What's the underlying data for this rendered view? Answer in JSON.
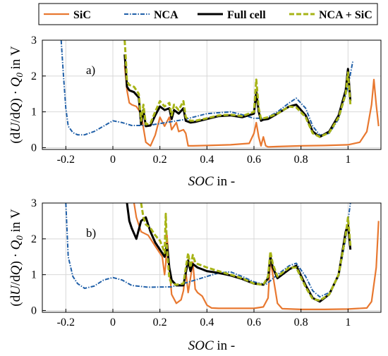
{
  "legend": {
    "items": [
      {
        "key": "sic",
        "label": "SiC",
        "color": "#E87830",
        "dash": "solid"
      },
      {
        "key": "nca",
        "label": "NCA",
        "color": "#1F5FA8",
        "dash": "dashdot"
      },
      {
        "key": "full",
        "label": "Full cell",
        "color": "#000000",
        "dash": "solid-thick"
      },
      {
        "key": "ncasic",
        "label": "NCA + SiC",
        "color": "#A7B417",
        "dash": "dashed-thick"
      }
    ]
  },
  "chart_data": [
    {
      "type": "line",
      "panel_label": "a)",
      "xlabel": "SOC in -",
      "ylabel": "(dU/dQ) · Q0 in V",
      "xlim": [
        -0.3,
        1.14
      ],
      "ylim": [
        -0.05,
        3.0
      ],
      "xticks": [
        -0.2,
        0,
        0.2,
        0.4,
        0.6,
        0.8,
        1
      ],
      "xtick_labels": [
        "-0.2",
        "0",
        "0.2",
        "0.4",
        "0.6",
        "0.8",
        "1"
      ],
      "yticks": [
        0,
        1,
        2,
        3
      ],
      "ytick_labels": [
        "0",
        "1",
        "2",
        "3"
      ],
      "grid": true,
      "series": [
        {
          "key": "sic",
          "name": "SiC",
          "x": [
            0.05,
            0.06,
            0.07,
            0.08,
            0.1,
            0.12,
            0.14,
            0.16,
            0.18,
            0.2,
            0.22,
            0.24,
            0.25,
            0.27,
            0.28,
            0.3,
            0.31,
            0.32,
            0.34,
            0.4,
            0.5,
            0.58,
            0.6,
            0.61,
            0.62,
            0.63,
            0.64,
            0.65,
            0.66,
            0.7,
            0.8,
            0.9,
            1.0,
            1.05,
            1.08,
            1.1,
            1.11,
            1.12,
            1.13
          ],
          "y": [
            2.3,
            1.6,
            1.25,
            1.2,
            1.15,
            0.95,
            0.15,
            0.05,
            0.35,
            0.85,
            0.6,
            0.85,
            0.5,
            0.7,
            0.45,
            0.5,
            0.4,
            0.05,
            0.05,
            0.06,
            0.08,
            0.12,
            0.4,
            0.7,
            0.3,
            0.05,
            0.3,
            0.05,
            0.02,
            0.03,
            0.05,
            0.06,
            0.08,
            0.15,
            0.45,
            1.2,
            1.9,
            1.2,
            0.6
          ]
        },
        {
          "key": "nca",
          "name": "NCA",
          "x": [
            -0.22,
            -0.21,
            -0.2,
            -0.19,
            -0.17,
            -0.15,
            -0.12,
            -0.08,
            -0.04,
            0.0,
            0.04,
            0.08,
            0.15,
            0.3,
            0.4,
            0.5,
            0.55,
            0.6,
            0.65,
            0.7,
            0.75,
            0.78,
            0.82,
            0.85,
            0.88,
            0.92,
            0.96,
            1.0,
            1.02
          ],
          "y": [
            3.0,
            2.0,
            1.1,
            0.6,
            0.42,
            0.36,
            0.36,
            0.45,
            0.6,
            0.75,
            0.7,
            0.62,
            0.62,
            0.78,
            0.95,
            1.0,
            0.92,
            0.82,
            0.82,
            1.0,
            1.25,
            1.38,
            1.1,
            0.6,
            0.35,
            0.4,
            0.8,
            1.7,
            2.4
          ]
        },
        {
          "key": "full",
          "name": "Full cell",
          "x": [
            0.05,
            0.055,
            0.06,
            0.07,
            0.09,
            0.11,
            0.12,
            0.13,
            0.14,
            0.16,
            0.18,
            0.2,
            0.22,
            0.24,
            0.25,
            0.26,
            0.28,
            0.3,
            0.31,
            0.33,
            0.35,
            0.4,
            0.45,
            0.5,
            0.55,
            0.6,
            0.61,
            0.62,
            0.63,
            0.64,
            0.66,
            0.7,
            0.75,
            0.78,
            0.82,
            0.85,
            0.88,
            0.92,
            0.96,
            0.99,
            1.0,
            1.01
          ],
          "y": [
            2.6,
            2.2,
            1.7,
            1.6,
            1.55,
            1.4,
            0.65,
            1.05,
            0.6,
            0.62,
            0.9,
            1.15,
            1.05,
            1.1,
            0.8,
            1.05,
            0.95,
            1.1,
            0.75,
            0.7,
            0.72,
            0.8,
            0.88,
            0.9,
            0.85,
            0.95,
            1.55,
            1.0,
            0.75,
            0.78,
            0.8,
            0.95,
            1.15,
            1.2,
            0.9,
            0.45,
            0.3,
            0.45,
            0.9,
            1.6,
            2.2,
            1.3
          ]
        },
        {
          "key": "ncasic",
          "name": "NCA + SiC",
          "x": [
            0.05,
            0.055,
            0.06,
            0.07,
            0.09,
            0.11,
            0.12,
            0.13,
            0.14,
            0.16,
            0.18,
            0.2,
            0.22,
            0.24,
            0.25,
            0.26,
            0.28,
            0.3,
            0.31,
            0.33,
            0.35,
            0.4,
            0.45,
            0.5,
            0.55,
            0.6,
            0.61,
            0.62,
            0.63,
            0.64,
            0.66,
            0.7,
            0.75,
            0.78,
            0.82,
            0.85,
            0.88,
            0.92,
            0.96,
            0.99,
            1.0,
            1.01
          ],
          "y": [
            3.0,
            2.5,
            1.85,
            1.75,
            1.7,
            1.5,
            0.75,
            1.2,
            0.65,
            0.68,
            1.0,
            1.3,
            1.15,
            1.25,
            0.9,
            1.2,
            1.05,
            1.3,
            0.85,
            0.75,
            0.75,
            0.82,
            0.9,
            0.92,
            0.88,
            1.0,
            1.9,
            1.1,
            0.8,
            0.82,
            0.85,
            0.95,
            1.15,
            1.12,
            0.85,
            0.4,
            0.3,
            0.42,
            0.85,
            1.5,
            2.1,
            1.2
          ]
        }
      ]
    },
    {
      "type": "line",
      "panel_label": "b)",
      "xlabel": "SOC in -",
      "ylabel": "(dU/dQ) · Q0 in V",
      "xlim": [
        -0.3,
        1.14
      ],
      "ylim": [
        -0.05,
        3.0
      ],
      "xticks": [
        -0.2,
        0,
        0.2,
        0.4,
        0.6,
        0.8,
        1
      ],
      "xtick_labels": [
        "-0.2",
        "0",
        "0.2",
        "0.4",
        "0.6",
        "0.8",
        "1"
      ],
      "yticks": [
        0,
        1,
        2,
        3
      ],
      "ytick_labels": [
        "0",
        "1",
        "2",
        "3"
      ],
      "grid": true,
      "series": [
        {
          "key": "sic",
          "name": "SiC",
          "x": [
            0.09,
            0.1,
            0.12,
            0.15,
            0.18,
            0.21,
            0.22,
            0.225,
            0.23,
            0.24,
            0.25,
            0.27,
            0.29,
            0.3,
            0.31,
            0.32,
            0.33,
            0.34,
            0.35,
            0.36,
            0.38,
            0.4,
            0.42,
            0.45,
            0.5,
            0.6,
            0.64,
            0.66,
            0.67,
            0.68,
            0.7,
            0.72,
            0.8,
            0.9,
            1.0,
            1.08,
            1.1,
            1.12,
            1.13
          ],
          "y": [
            3.0,
            2.6,
            2.2,
            2.1,
            1.8,
            1.5,
            1.0,
            1.3,
            2.1,
            1.2,
            0.45,
            0.2,
            0.3,
            0.55,
            1.1,
            0.5,
            0.9,
            1.35,
            0.6,
            0.5,
            0.4,
            0.15,
            0.07,
            0.06,
            0.06,
            0.06,
            0.1,
            0.35,
            1.45,
            1.0,
            0.2,
            0.05,
            0.03,
            0.03,
            0.04,
            0.07,
            0.25,
            1.2,
            2.5
          ]
        },
        {
          "key": "nca",
          "name": "NCA",
          "x": [
            -0.2,
            -0.19,
            -0.17,
            -0.15,
            -0.12,
            -0.08,
            -0.04,
            0.0,
            0.04,
            0.08,
            0.15,
            0.25,
            0.3,
            0.4,
            0.45,
            0.5,
            0.55,
            0.6,
            0.65,
            0.7,
            0.75,
            0.78,
            0.82,
            0.85,
            0.88,
            0.92,
            0.96,
            0.99,
            1.01
          ],
          "y": [
            3.0,
            1.5,
            0.95,
            0.75,
            0.62,
            0.68,
            0.85,
            0.92,
            0.85,
            0.7,
            0.65,
            0.66,
            0.75,
            0.95,
            1.05,
            1.08,
            0.95,
            0.8,
            0.72,
            1.0,
            1.25,
            1.32,
            0.95,
            0.55,
            0.38,
            0.5,
            0.95,
            2.0,
            3.0
          ]
        },
        {
          "key": "full",
          "name": "Full cell",
          "x": [
            0.06,
            0.07,
            0.08,
            0.1,
            0.12,
            0.14,
            0.16,
            0.18,
            0.2,
            0.22,
            0.23,
            0.24,
            0.25,
            0.27,
            0.3,
            0.32,
            0.33,
            0.34,
            0.36,
            0.38,
            0.4,
            0.45,
            0.5,
            0.55,
            0.6,
            0.64,
            0.66,
            0.67,
            0.68,
            0.7,
            0.72,
            0.75,
            0.78,
            0.82,
            0.85,
            0.88,
            0.92,
            0.96,
            0.99,
            1.0,
            1.01
          ],
          "y": [
            3.0,
            2.5,
            2.3,
            2.0,
            2.5,
            2.6,
            2.2,
            1.9,
            1.7,
            1.5,
            1.85,
            1.2,
            0.85,
            0.7,
            0.7,
            1.4,
            1.1,
            1.3,
            1.2,
            1.15,
            1.1,
            1.05,
            0.98,
            0.88,
            0.75,
            0.72,
            0.9,
            1.5,
            1.2,
            0.9,
            1.0,
            1.15,
            1.25,
            0.7,
            0.35,
            0.25,
            0.45,
            1.0,
            2.2,
            2.4,
            1.7
          ]
        },
        {
          "key": "ncasic",
          "name": "NCA + SiC",
          "x": [
            0.12,
            0.13,
            0.14,
            0.16,
            0.18,
            0.2,
            0.21,
            0.22,
            0.225,
            0.23,
            0.24,
            0.25,
            0.27,
            0.3,
            0.32,
            0.33,
            0.34,
            0.35,
            0.36,
            0.38,
            0.4,
            0.45,
            0.5,
            0.55,
            0.6,
            0.64,
            0.66,
            0.67,
            0.68,
            0.7,
            0.72,
            0.75,
            0.78,
            0.82,
            0.85,
            0.88,
            0.92,
            0.96,
            0.99,
            1.0,
            1.01
          ],
          "y": [
            3.0,
            2.6,
            2.4,
            2.3,
            2.1,
            1.95,
            1.8,
            1.6,
            2.7,
            1.7,
            0.9,
            0.75,
            0.72,
            0.75,
            1.6,
            1.2,
            1.55,
            1.35,
            1.3,
            1.25,
            1.2,
            1.1,
            1.0,
            0.9,
            0.75,
            0.72,
            0.95,
            1.65,
            1.3,
            0.95,
            1.05,
            1.2,
            1.2,
            0.65,
            0.32,
            0.28,
            0.45,
            1.0,
            2.1,
            2.6,
            1.8
          ]
        }
      ]
    }
  ]
}
